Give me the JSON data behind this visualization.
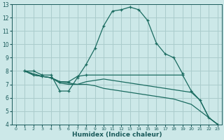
{
  "title": "",
  "xlabel": "Humidex (Indice chaleur)",
  "bg_color": "#cce8e8",
  "grid_color": "#aacccc",
  "line_color": "#1a6b60",
  "xlim": [
    -0.5,
    23.5
  ],
  "ylim": [
    4,
    13
  ],
  "xticks": [
    0,
    1,
    2,
    3,
    4,
    5,
    6,
    7,
    8,
    9,
    10,
    11,
    12,
    13,
    14,
    15,
    16,
    17,
    18,
    19,
    20,
    21,
    22,
    23
  ],
  "yticks": [
    4,
    5,
    6,
    7,
    8,
    9,
    10,
    11,
    12,
    13
  ],
  "line1_x": [
    1,
    2,
    3,
    4,
    5,
    6,
    7,
    8,
    9,
    10,
    11,
    12,
    13,
    14,
    15,
    16,
    17,
    18,
    19
  ],
  "line1_y": [
    8.0,
    8.0,
    7.7,
    7.7,
    6.5,
    6.5,
    7.5,
    8.5,
    9.7,
    11.4,
    12.5,
    12.6,
    12.8,
    12.6,
    11.8,
    10.1,
    9.3,
    9.0,
    7.8
  ],
  "line2_x": [
    1,
    2,
    3,
    4,
    5,
    6,
    7,
    8,
    19,
    20,
    21,
    22,
    23
  ],
  "line2_y": [
    8.0,
    7.7,
    7.6,
    7.5,
    7.2,
    7.2,
    7.6,
    7.7,
    7.7,
    6.5,
    5.8,
    4.5,
    4.0
  ],
  "line3_x": [
    1,
    2,
    3,
    4,
    5,
    6,
    7,
    8,
    9,
    10,
    11,
    12,
    13,
    14,
    15,
    16,
    17,
    18,
    19,
    20,
    21,
    22,
    23
  ],
  "line3_y": [
    8.0,
    7.7,
    7.6,
    7.5,
    7.1,
    7.0,
    7.0,
    7.2,
    7.3,
    7.4,
    7.3,
    7.2,
    7.1,
    7.0,
    6.9,
    6.8,
    6.7,
    6.6,
    6.5,
    6.4,
    5.8,
    4.5,
    4.0
  ],
  "line4_x": [
    1,
    2,
    3,
    4,
    5,
    6,
    7,
    8,
    9,
    10,
    11,
    12,
    13,
    14,
    15,
    16,
    17,
    18,
    19,
    20,
    21,
    22,
    23
  ],
  "line4_y": [
    8.0,
    7.8,
    7.6,
    7.5,
    7.2,
    7.1,
    7.0,
    7.0,
    6.9,
    6.7,
    6.6,
    6.5,
    6.4,
    6.3,
    6.2,
    6.1,
    6.0,
    5.9,
    5.7,
    5.5,
    5.0,
    4.5,
    4.0
  ]
}
